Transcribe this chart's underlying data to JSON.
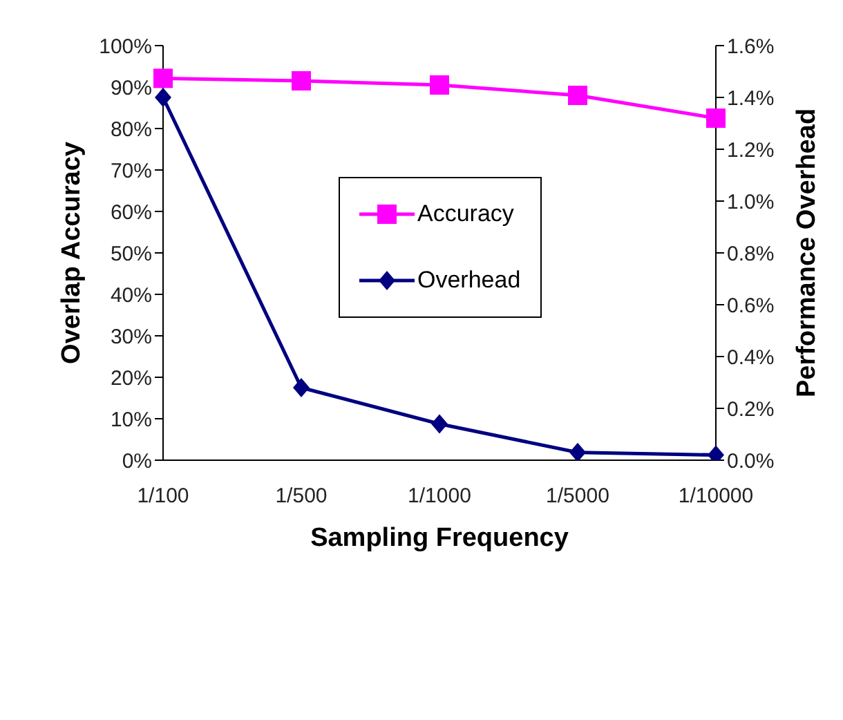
{
  "chart_data": {
    "type": "line",
    "xlabel": "Sampling Frequency",
    "ylabel": "Overlap Accuracy",
    "y2label": "Performance Overhead",
    "categories": [
      "1/100",
      "1/500",
      "1/1000",
      "1/5000",
      "1/10000"
    ],
    "series": [
      {
        "name": "Accuracy",
        "color": "#ff00ff",
        "marker": "square",
        "values": [
          92.1,
          91.5,
          90.5,
          88,
          82.5
        ]
      },
      {
        "name": "Overhead",
        "color": "#000080",
        "marker": "diamond",
        "axis": "y2",
        "values": [
          1.4,
          0.28,
          0.14,
          0.03,
          0.02
        ]
      }
    ],
    "ylim": [
      0,
      100
    ],
    "yticks": [
      {
        "value": 0,
        "label": "0%"
      },
      {
        "value": 10,
        "label": "10%"
      },
      {
        "value": 20,
        "label": "20%"
      },
      {
        "value": 30,
        "label": "30%"
      },
      {
        "value": 40,
        "label": "40%"
      },
      {
        "value": 50,
        "label": "50%"
      },
      {
        "value": 60,
        "label": "60%"
      },
      {
        "value": 70,
        "label": "70%"
      },
      {
        "value": 80,
        "label": "80%"
      },
      {
        "value": 90,
        "label": "90%"
      },
      {
        "value": 100,
        "label": "100%"
      }
    ],
    "y2lim": [
      0,
      1.6
    ],
    "y2ticks": [
      {
        "value": 0,
        "label": "0.0%"
      },
      {
        "value": 0.2,
        "label": "0.2%"
      },
      {
        "value": 0.4,
        "label": "0.4%"
      },
      {
        "value": 0.6,
        "label": "0.6%"
      },
      {
        "value": 0.8,
        "label": "0.8%"
      },
      {
        "value": 1,
        "label": "1.0%"
      },
      {
        "value": 1.2,
        "label": "1.2%"
      },
      {
        "value": 1.4,
        "label": "1.4%"
      },
      {
        "value": 1.6,
        "label": "1.6%"
      }
    ],
    "legend": "top",
    "grid": false
  }
}
